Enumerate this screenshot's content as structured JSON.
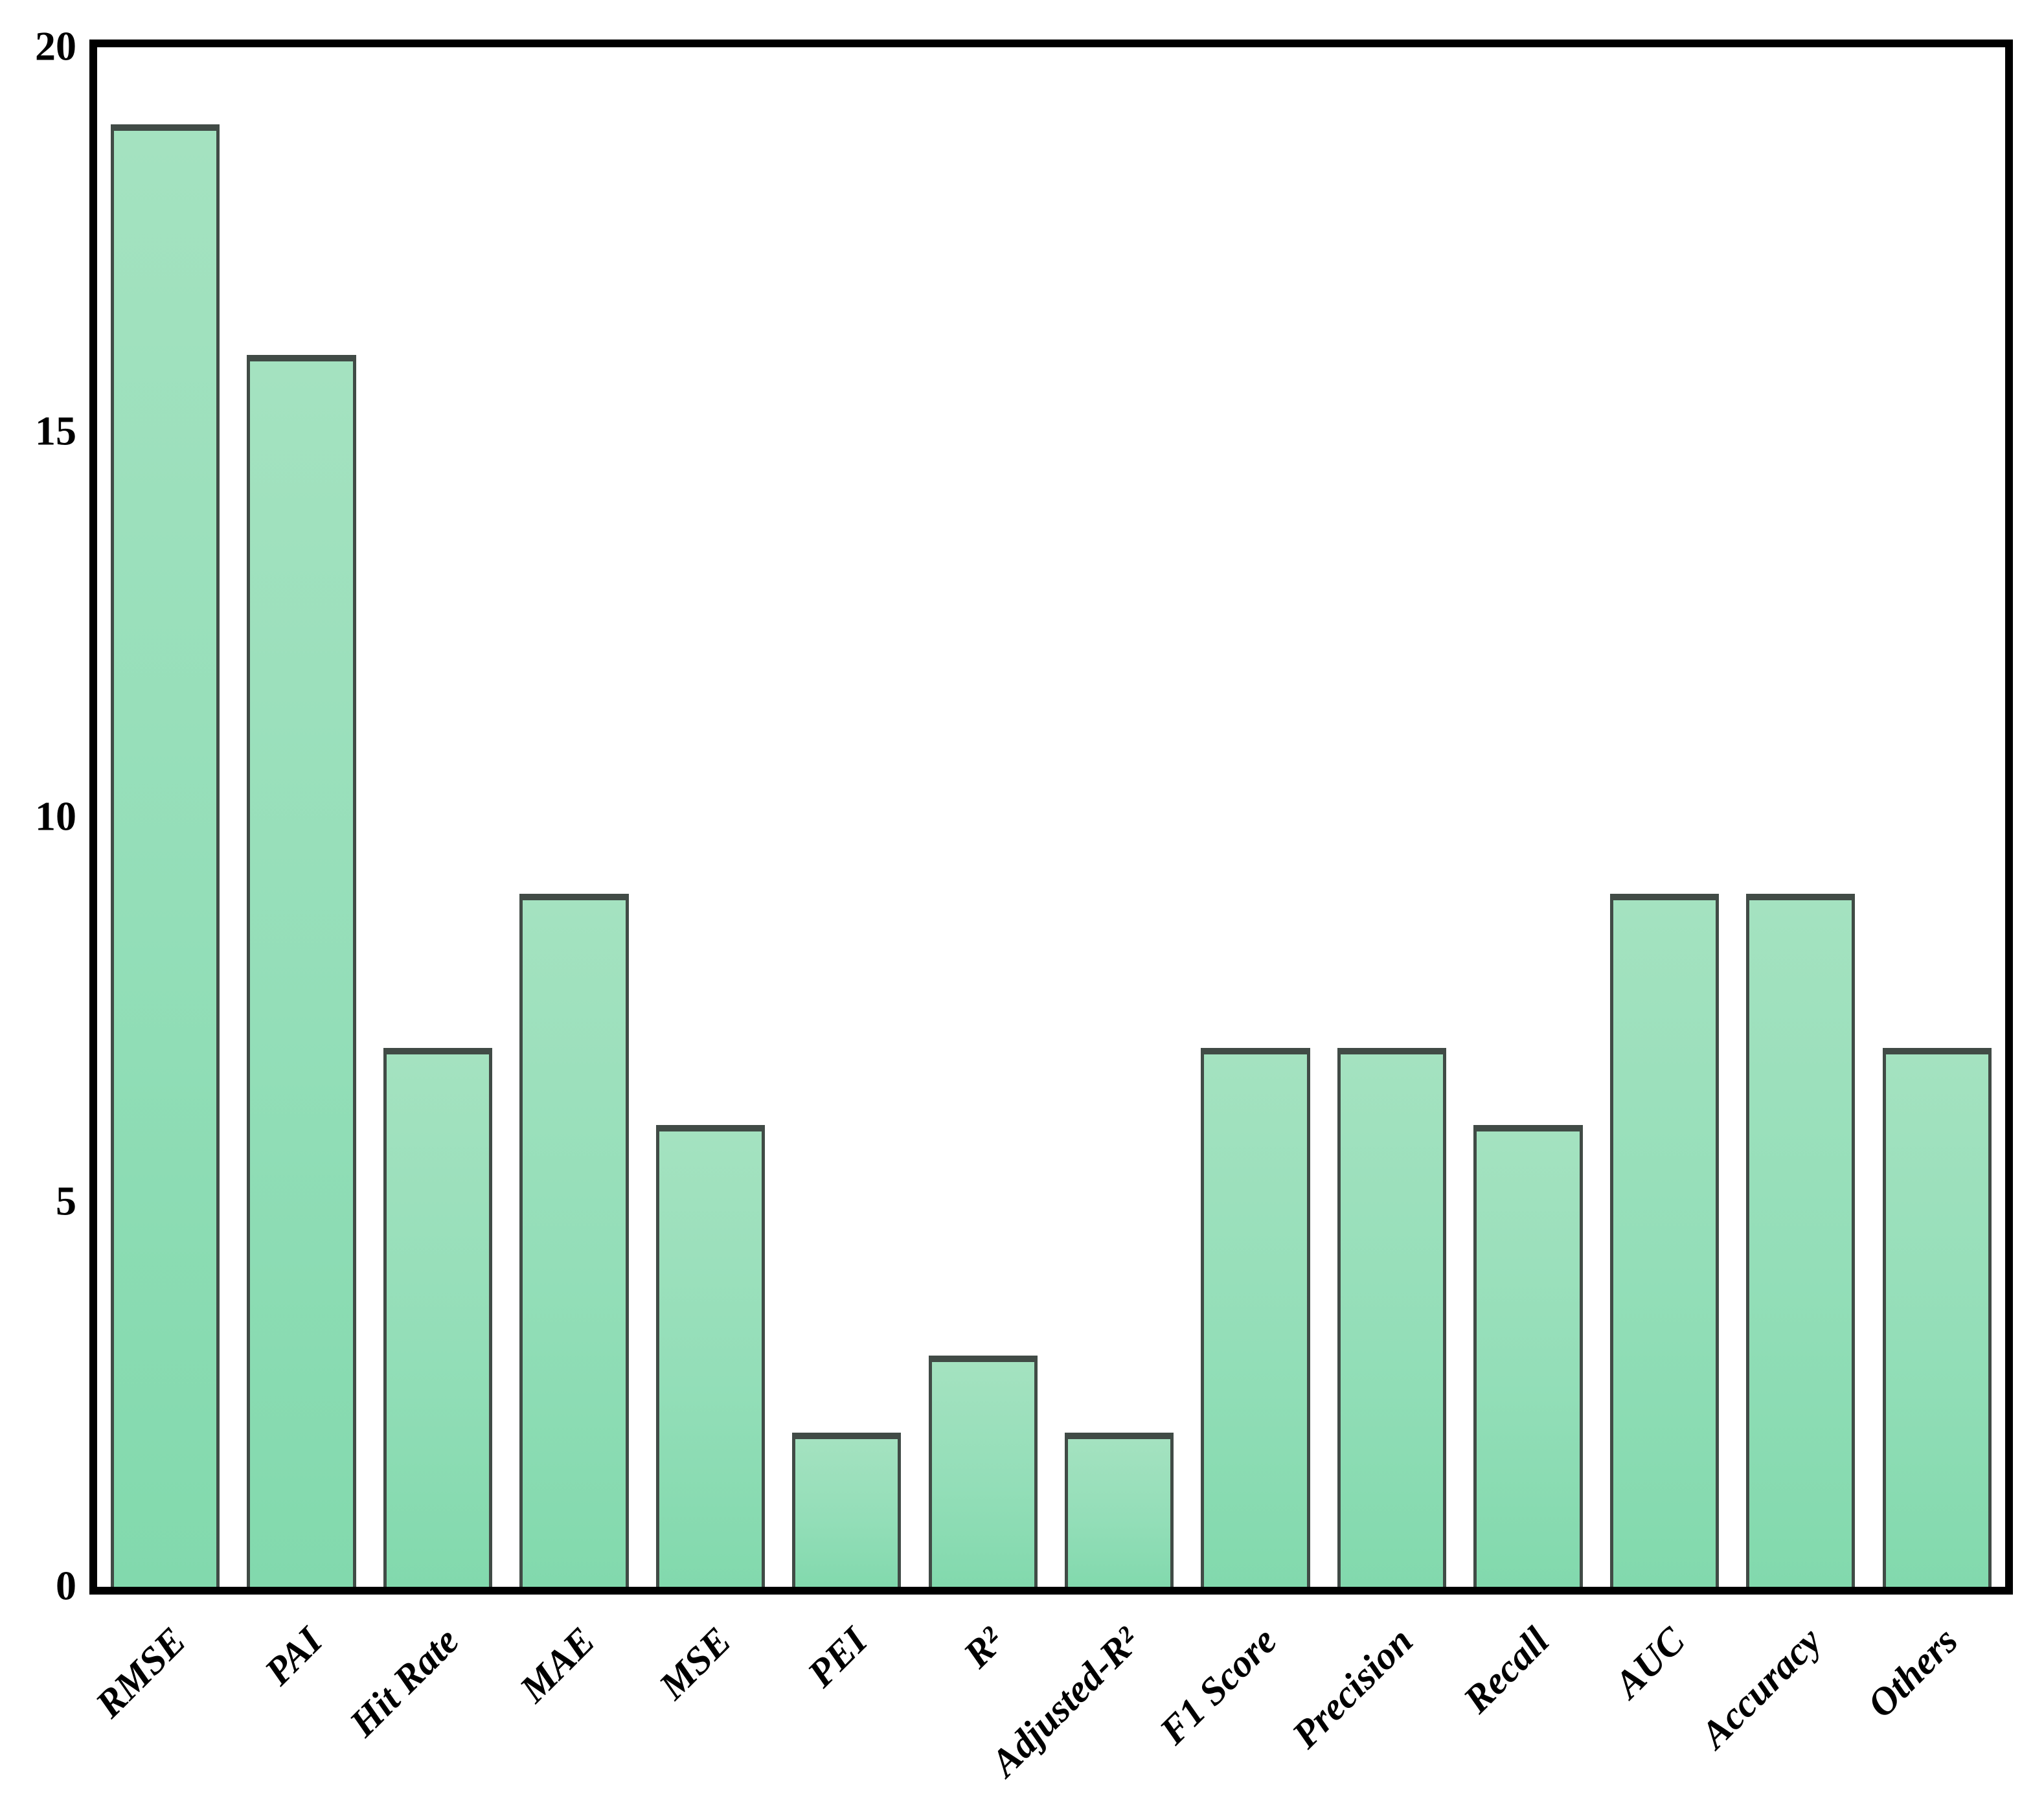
{
  "chart_data": {
    "type": "bar",
    "categories": [
      "RMSE",
      "PAI",
      "Hit Rate",
      "MAE",
      "MSE",
      "PEI",
      "R²",
      "Adjusted-R²",
      "F1 Score",
      "Precision",
      "Recall",
      "AUC",
      "Accuracy",
      "Others"
    ],
    "values": [
      19,
      16,
      7,
      9,
      6,
      2,
      3,
      2,
      7,
      7,
      6,
      9,
      9,
      7
    ],
    "title": "",
    "xlabel": "",
    "ylabel": "",
    "ylim": [
      0,
      20
    ],
    "yticks": [
      0,
      5,
      10,
      15,
      20
    ],
    "grid": false,
    "legend_position": "none",
    "bar_width_fraction": 0.8,
    "colors": {
      "bar_fill_top": "#a4e2c0",
      "bar_fill_mid": "#93deb8",
      "bar_fill_bottom": "#82d9ad",
      "bar_edge": "#414b46",
      "axis_frame": "#000000",
      "tick_label": "#000000",
      "background": "#ffffff"
    }
  }
}
